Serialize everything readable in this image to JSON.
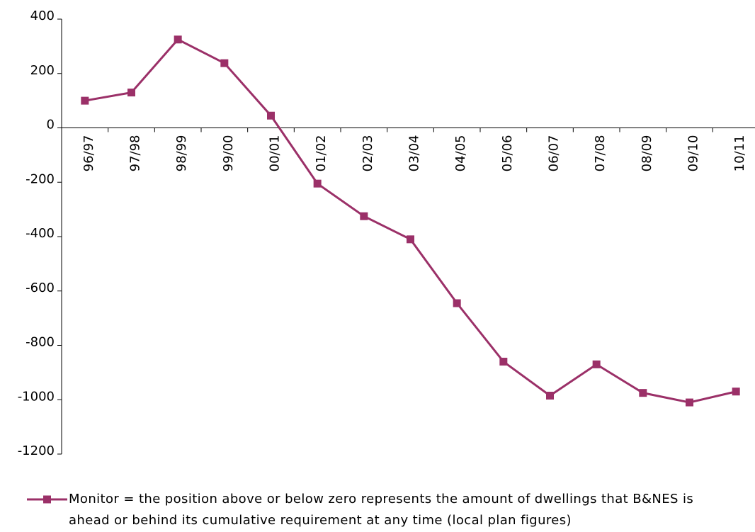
{
  "chart_data": {
    "type": "line",
    "categories": [
      "96/97",
      "97/98",
      "98/99",
      "99/00",
      "00/01",
      "01/02",
      "02/03",
      "03/04",
      "04/05",
      "05/06",
      "06/07",
      "07/08",
      "08/09",
      "09/10",
      "10/11"
    ],
    "series": [
      {
        "name": "Monitor = the position above or below zero represents the amount of dwellings that B&NES is ahead or behind its cumulative requirement at any time (local plan figures)",
        "color": "#9b3068",
        "values": [
          100,
          130,
          325,
          238,
          45,
          -205,
          -325,
          -410,
          -645,
          -860,
          -985,
          -870,
          -975,
          -1010,
          -970
        ]
      }
    ],
    "ylim": [
      -1200,
      400
    ],
    "yticks": [
      -1200,
      -1000,
      -800,
      -600,
      -400,
      -200,
      0,
      200,
      400
    ],
    "grid": false,
    "legend": "bottom"
  }
}
